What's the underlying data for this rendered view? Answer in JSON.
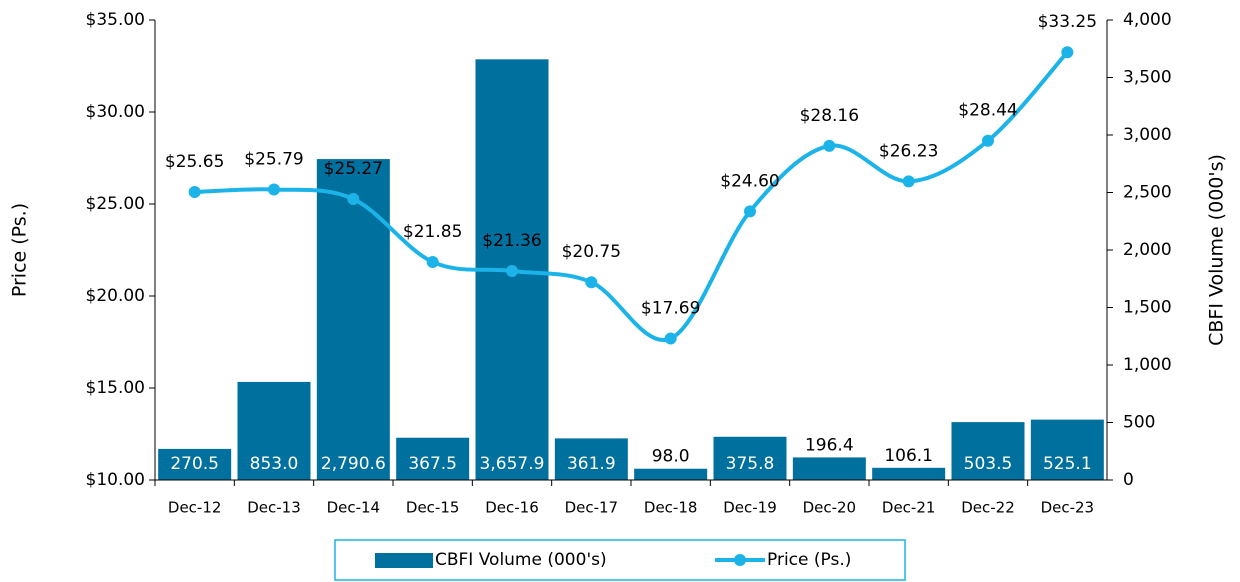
{
  "chart_data": {
    "type": "combo",
    "y_label": "Price (Ps.)",
    "y2_label": "CBFI Volume (000's)",
    "categories": [
      "Dec-12",
      "Dec-13",
      "Dec-14",
      "Dec-15",
      "Dec-16",
      "Dec-17",
      "Dec-18",
      "Dec-19",
      "Dec-20",
      "Dec-21",
      "Dec-22",
      "Dec-23"
    ],
    "series": [
      {
        "name": "CBFI Volume (000's)",
        "type": "bar",
        "axis": "y2",
        "color": "#00709e",
        "values": [
          270.5,
          853.0,
          2790.6,
          367.5,
          3657.9,
          361.9,
          98.0,
          375.8,
          196.4,
          106.1,
          503.5,
          525.1
        ],
        "value_labels": [
          "270.5",
          "853.0",
          "2,790.6",
          "367.5",
          "3,657.9",
          "361.9",
          "98.0",
          "375.8",
          "196.4",
          "106.1",
          "503.5",
          "525.1"
        ]
      },
      {
        "name": "Price (Ps.)",
        "type": "line",
        "axis": "y",
        "color": "#1cb4e8",
        "values": [
          25.65,
          25.79,
          25.27,
          21.85,
          21.36,
          20.75,
          17.69,
          24.6,
          28.16,
          26.23,
          28.44,
          33.25
        ],
        "value_labels": [
          "$25.65",
          "$25.79",
          "$25.27",
          "$21.85",
          "$21.36",
          "$20.75",
          "$17.69",
          "$24.60",
          "$28.16",
          "$26.23",
          "$28.44",
          "$33.25"
        ]
      }
    ],
    "ylim": [
      10,
      35
    ],
    "yticks": [
      {
        "value": 10,
        "label": "$10.00"
      },
      {
        "value": 15,
        "label": "$15.00"
      },
      {
        "value": 20,
        "label": "$20.00"
      },
      {
        "value": 25,
        "label": "$25.00"
      },
      {
        "value": 30,
        "label": "$30.00"
      },
      {
        "value": 35,
        "label": "$35.00"
      }
    ],
    "y2lim": [
      0,
      4000
    ],
    "y2ticks": [
      0,
      500,
      {
        "value": 1000,
        "label": "1,000"
      },
      {
        "value": 1500,
        "label": "1,500"
      },
      {
        "value": 2000,
        "label": "2,000"
      },
      {
        "value": 2500,
        "label": "2,500"
      },
      {
        "value": 3000,
        "label": "3,000"
      },
      {
        "value": 3500,
        "label": "3,500"
      },
      {
        "value": 4000,
        "label": "4,000"
      }
    ],
    "legend": "bottom"
  }
}
